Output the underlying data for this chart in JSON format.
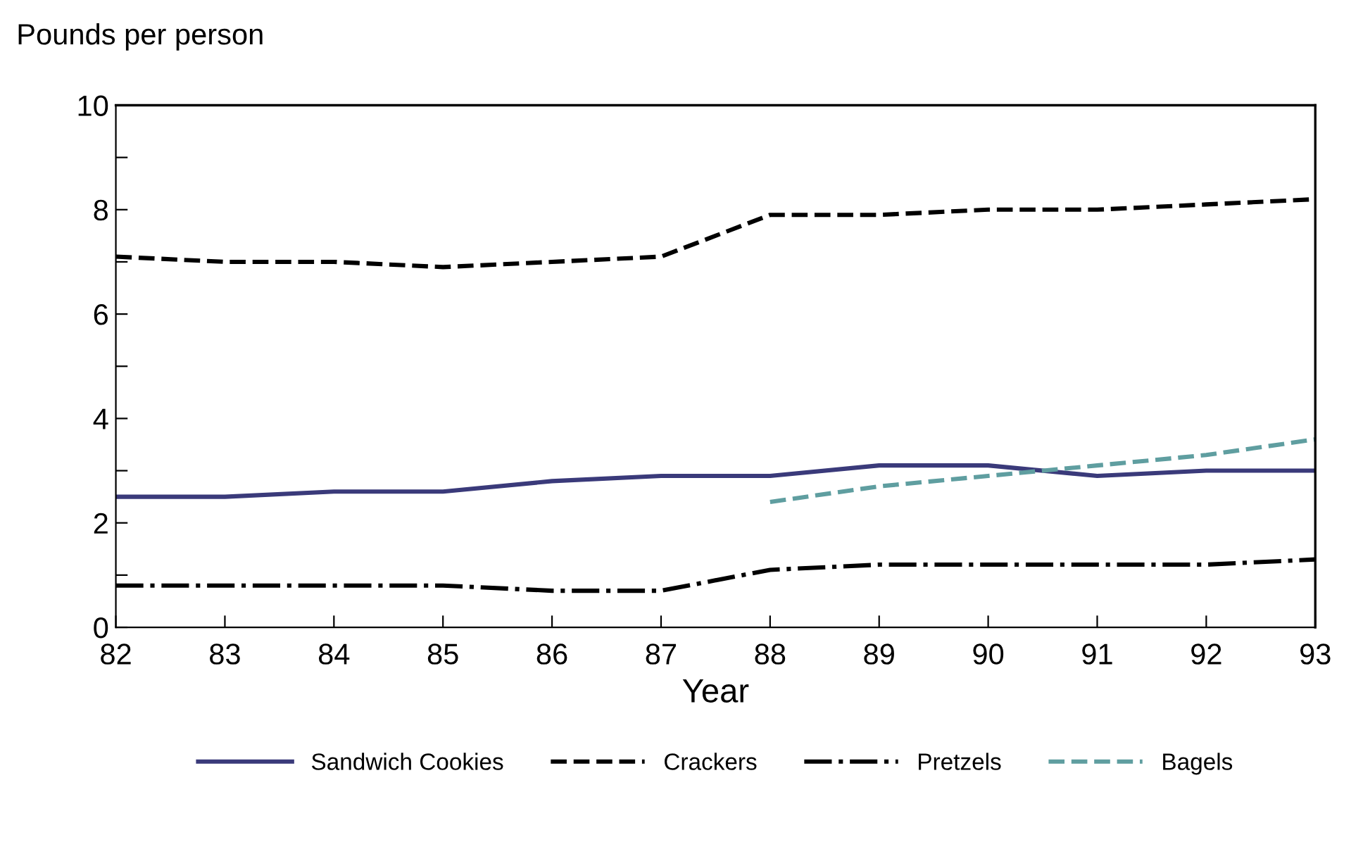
{
  "chart_data": {
    "type": "line",
    "ylabel": "Pounds per person",
    "xlabel": "Year",
    "x": [
      82,
      83,
      84,
      85,
      86,
      87,
      88,
      89,
      90,
      91,
      92,
      93
    ],
    "xlim": [
      82,
      93
    ],
    "xticks": [
      82,
      83,
      84,
      85,
      86,
      87,
      88,
      89,
      90,
      91,
      92,
      93
    ],
    "ylim": [
      0,
      10
    ],
    "yticks": [
      0,
      {
        "value": 1,
        "label": null
      },
      2,
      {
        "value": 3,
        "label": null
      },
      4,
      {
        "value": 5,
        "label": null
      },
      6,
      {
        "value": 7,
        "label": null
      },
      8,
      {
        "value": 9,
        "label": null
      },
      10
    ],
    "legend": "bottom",
    "marker": "none",
    "series": [
      {
        "name": "Sandwich Cookies",
        "color": "#3a3a7a",
        "line_style": "solid",
        "values": [
          2.5,
          2.5,
          2.6,
          2.6,
          2.8,
          2.9,
          2.9,
          3.1,
          3.1,
          2.9,
          3.0,
          3.0
        ]
      },
      {
        "name": "Crackers",
        "color": "#000000",
        "line_style": "dashed",
        "values": [
          7.1,
          7.0,
          7.0,
          6.9,
          7.0,
          7.1,
          7.9,
          7.9,
          8.0,
          8.0,
          8.1,
          8.2
        ]
      },
      {
        "name": "Pretzels",
        "color": "#000000",
        "line_style": "dashdot",
        "values": [
          0.8,
          0.8,
          0.8,
          0.8,
          0.7,
          0.7,
          1.1,
          1.2,
          1.2,
          1.2,
          1.2,
          1.3
        ]
      },
      {
        "name": "Bagels",
        "color": "#5f9ea0",
        "line_style": "dashed",
        "values": [
          null,
          null,
          null,
          null,
          null,
          null,
          2.4,
          2.7,
          2.9,
          3.1,
          3.3,
          3.6
        ]
      }
    ]
  }
}
